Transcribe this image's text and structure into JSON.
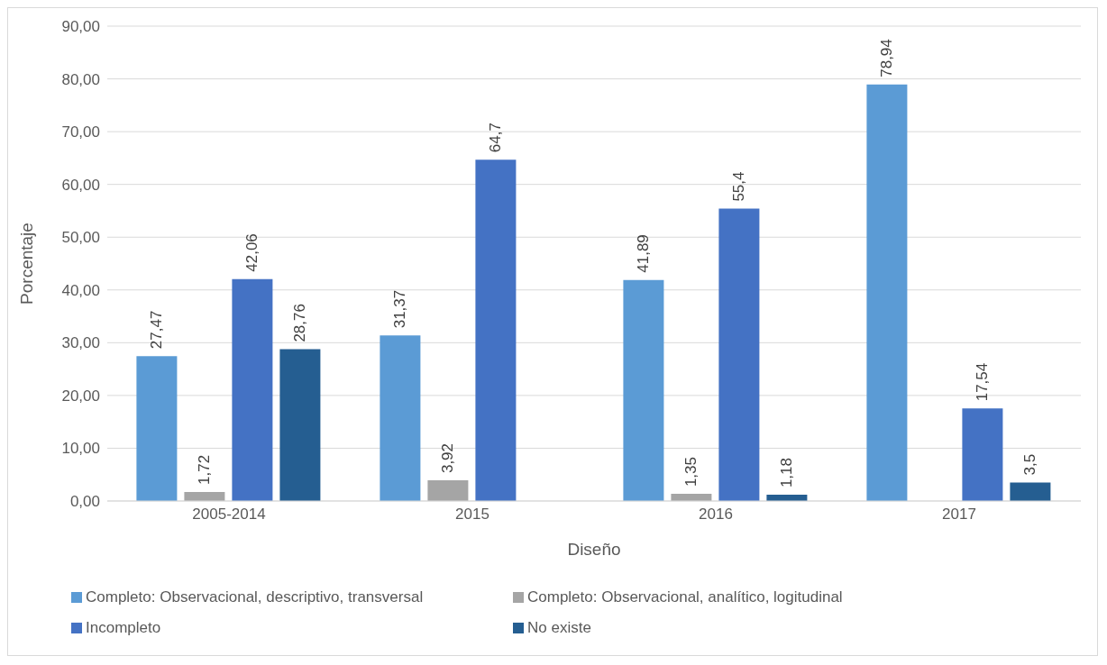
{
  "chart_data": {
    "type": "bar",
    "xlabel": "Diseño",
    "ylabel": "Porcentaje",
    "categories": [
      "2005-2014",
      "2015",
      "2016",
      "2017"
    ],
    "series": [
      {
        "name": "Completo: Observacional, descriptivo, transversal",
        "color": "#5b9bd5",
        "values": [
          27.47,
          31.37,
          41.89,
          78.94
        ],
        "value_labels": [
          "27,47",
          "31,37",
          "41,89",
          "78,94"
        ]
      },
      {
        "name": "Completo: Observacional, analítico, logitudinal",
        "color": "#a5a5a5",
        "values": [
          1.72,
          3.92,
          1.35,
          null
        ],
        "value_labels": [
          "1,72",
          "3,92",
          "1,35",
          null
        ]
      },
      {
        "name": "Incompleto",
        "color": "#4472c4",
        "values": [
          42.06,
          64.7,
          55.4,
          17.54
        ],
        "value_labels": [
          "42,06",
          "64,7",
          "55,4",
          "17,54"
        ]
      },
      {
        "name": "No existe",
        "color": "#255e91",
        "values": [
          28.76,
          null,
          1.18,
          3.5
        ],
        "value_labels": [
          "28,76",
          null,
          "1,18",
          "3,5"
        ]
      }
    ],
    "ylim": [
      0,
      90
    ],
    "yticks": [
      {
        "value": 0,
        "label": "0,00"
      },
      {
        "value": 10,
        "label": "10,00"
      },
      {
        "value": 20,
        "label": "20,00"
      },
      {
        "value": 30,
        "label": "30,00"
      },
      {
        "value": 40,
        "label": "40,00"
      },
      {
        "value": 50,
        "label": "50,00"
      },
      {
        "value": 60,
        "label": "60,00"
      },
      {
        "value": 70,
        "label": "70,00"
      },
      {
        "value": 80,
        "label": "80,00"
      },
      {
        "value": 90,
        "label": "90,00"
      }
    ],
    "grid": "y",
    "legend": "bottom"
  }
}
